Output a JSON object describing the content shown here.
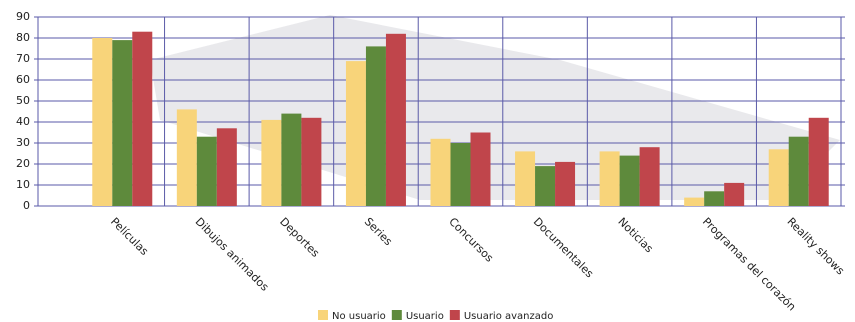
{
  "chart_data": {
    "type": "bar",
    "categories": [
      "Películas",
      "Dibujos animados",
      "Deportes",
      "Series",
      "Concursos",
      "Documentales",
      "Noticias",
      "Programas del corazón",
      "Reality shows"
    ],
    "series": [
      {
        "name": "No usuario",
        "color": "#f8d47a",
        "values": [
          80,
          46,
          41,
          69,
          32,
          26,
          26,
          4,
          27
        ]
      },
      {
        "name": "Usuario",
        "color": "#5e8a3c",
        "values": [
          79,
          33,
          44,
          76,
          30,
          19,
          24,
          7,
          33
        ]
      },
      {
        "name": "Usuario avanzado",
        "color": "#c0454b",
        "values": [
          83,
          37,
          42,
          82,
          35,
          21,
          28,
          11,
          42
        ]
      }
    ],
    "ylim": [
      0,
      90
    ],
    "yticks": [
      0,
      10,
      20,
      30,
      40,
      50,
      60,
      70,
      80,
      90
    ],
    "grid": true
  }
}
